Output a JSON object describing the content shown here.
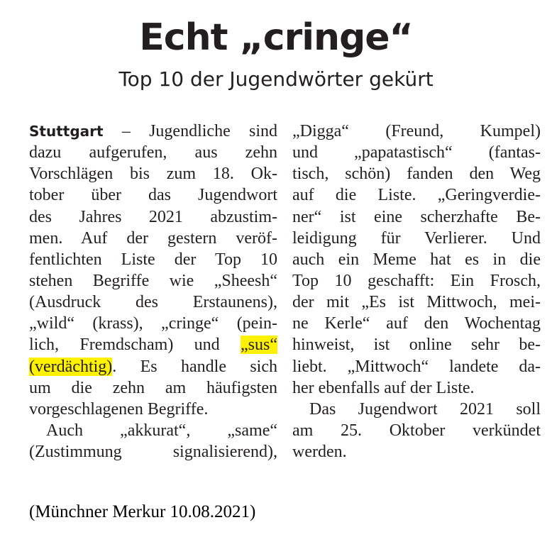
{
  "headline": "Echt „cringe“",
  "subheadline": "Top 10 der Jugendwörter gekürt",
  "highlight_color": "#fff200",
  "columns": [
    [
      {
        "segments": [
          {
            "text": "Stuttgart",
            "style": "bold"
          },
          {
            "text": " – Jugendliche sind"
          }
        ]
      },
      {
        "segments": [
          {
            "text": "dazu aufgerufen, aus zehn"
          }
        ]
      },
      {
        "segments": [
          {
            "text": "Vorschlägen bis zum 18. Ok-"
          }
        ]
      },
      {
        "segments": [
          {
            "text": "tober über das Jugendwort"
          }
        ]
      },
      {
        "segments": [
          {
            "text": "des Jahres 2021 abzustim-"
          }
        ]
      },
      {
        "segments": [
          {
            "text": "men. Auf der gestern veröf-"
          }
        ]
      },
      {
        "segments": [
          {
            "text": "fentlichten Liste der Top 10"
          }
        ]
      },
      {
        "segments": [
          {
            "text": "stehen Begriffe wie „Sheesh“"
          }
        ]
      },
      {
        "segments": [
          {
            "text": "(Ausdruck des Erstaunens),"
          }
        ]
      },
      {
        "segments": [
          {
            "text": "„wild“ (krass), „cringe“ (pein-"
          }
        ]
      },
      {
        "segments": [
          {
            "text": "lich, Fremdscham) und "
          },
          {
            "text": "„sus“",
            "style": "hl"
          }
        ]
      },
      {
        "segments": [
          {
            "text": "(verdächtig)",
            "style": "hl"
          },
          {
            "text": ". Es handle sich"
          }
        ]
      },
      {
        "segments": [
          {
            "text": "um die zehn am häufigsten"
          }
        ]
      },
      {
        "segments": [
          {
            "text": "vorgeschlagenen Begriffe."
          }
        ],
        "last": true
      },
      {
        "segments": [
          {
            "text": "Auch „akkurat“, „same“"
          }
        ],
        "indent": true
      },
      {
        "segments": [
          {
            "text": "(Zustimmung signalisierend),"
          }
        ]
      }
    ],
    [
      {
        "segments": [
          {
            "text": "„Digga“ (Freund, Kumpel)"
          }
        ]
      },
      {
        "segments": [
          {
            "text": "und „papatastisch“ (fantas-"
          }
        ]
      },
      {
        "segments": [
          {
            "text": "tisch, schön) fanden den Weg"
          }
        ]
      },
      {
        "segments": [
          {
            "text": "auf die Liste. „Geringverdie-"
          }
        ]
      },
      {
        "segments": [
          {
            "text": "ner“ ist eine scherzhafte Be-"
          }
        ]
      },
      {
        "segments": [
          {
            "text": "leidigung für Verlierer. Und"
          }
        ]
      },
      {
        "segments": [
          {
            "text": "auch ein Meme hat es in die"
          }
        ]
      },
      {
        "segments": [
          {
            "text": "Top 10 geschafft: Ein Frosch,"
          }
        ]
      },
      {
        "segments": [
          {
            "text": "der mit „Es ist Mittwoch, mei-"
          }
        ]
      },
      {
        "segments": [
          {
            "text": "ne Kerle“ auf den Wochentag"
          }
        ]
      },
      {
        "segments": [
          {
            "text": "hinweist, ist online sehr be-"
          }
        ]
      },
      {
        "segments": [
          {
            "text": "liebt. „Mittwoch“ landete da-"
          }
        ]
      },
      {
        "segments": [
          {
            "text": "her ebenfalls auf der Liste."
          }
        ],
        "last": true
      },
      {
        "segments": [
          {
            "text": "Das Jugendwort 2021 soll"
          }
        ],
        "indent": true
      },
      {
        "segments": [
          {
            "text": "am 25. Oktober verkündet"
          }
        ]
      },
      {
        "segments": [
          {
            "text": "werden."
          }
        ],
        "last": true
      }
    ]
  ],
  "source": "(Münchner Merkur 10.08.2021)"
}
